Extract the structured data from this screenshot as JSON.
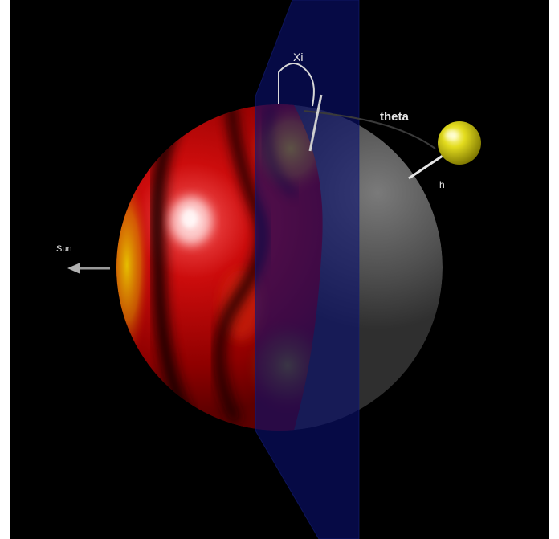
{
  "scene": {
    "labels": {
      "xi": "Xi",
      "theta": "theta",
      "h": "h",
      "sun": "Sun"
    },
    "colors": {
      "background": "#000000",
      "frame": "#ffffff",
      "plane": "#0a0f5a",
      "heat_base": "#b40000",
      "heat_hot": "#e8c400",
      "night_side": "#5a5a5a",
      "satellite": "#d9d20a",
      "vectors": "#cfcfcf"
    },
    "objects": [
      "planet-sphere",
      "terminator-plane",
      "satellite-sphere",
      "sun-direction-arrow"
    ]
  }
}
